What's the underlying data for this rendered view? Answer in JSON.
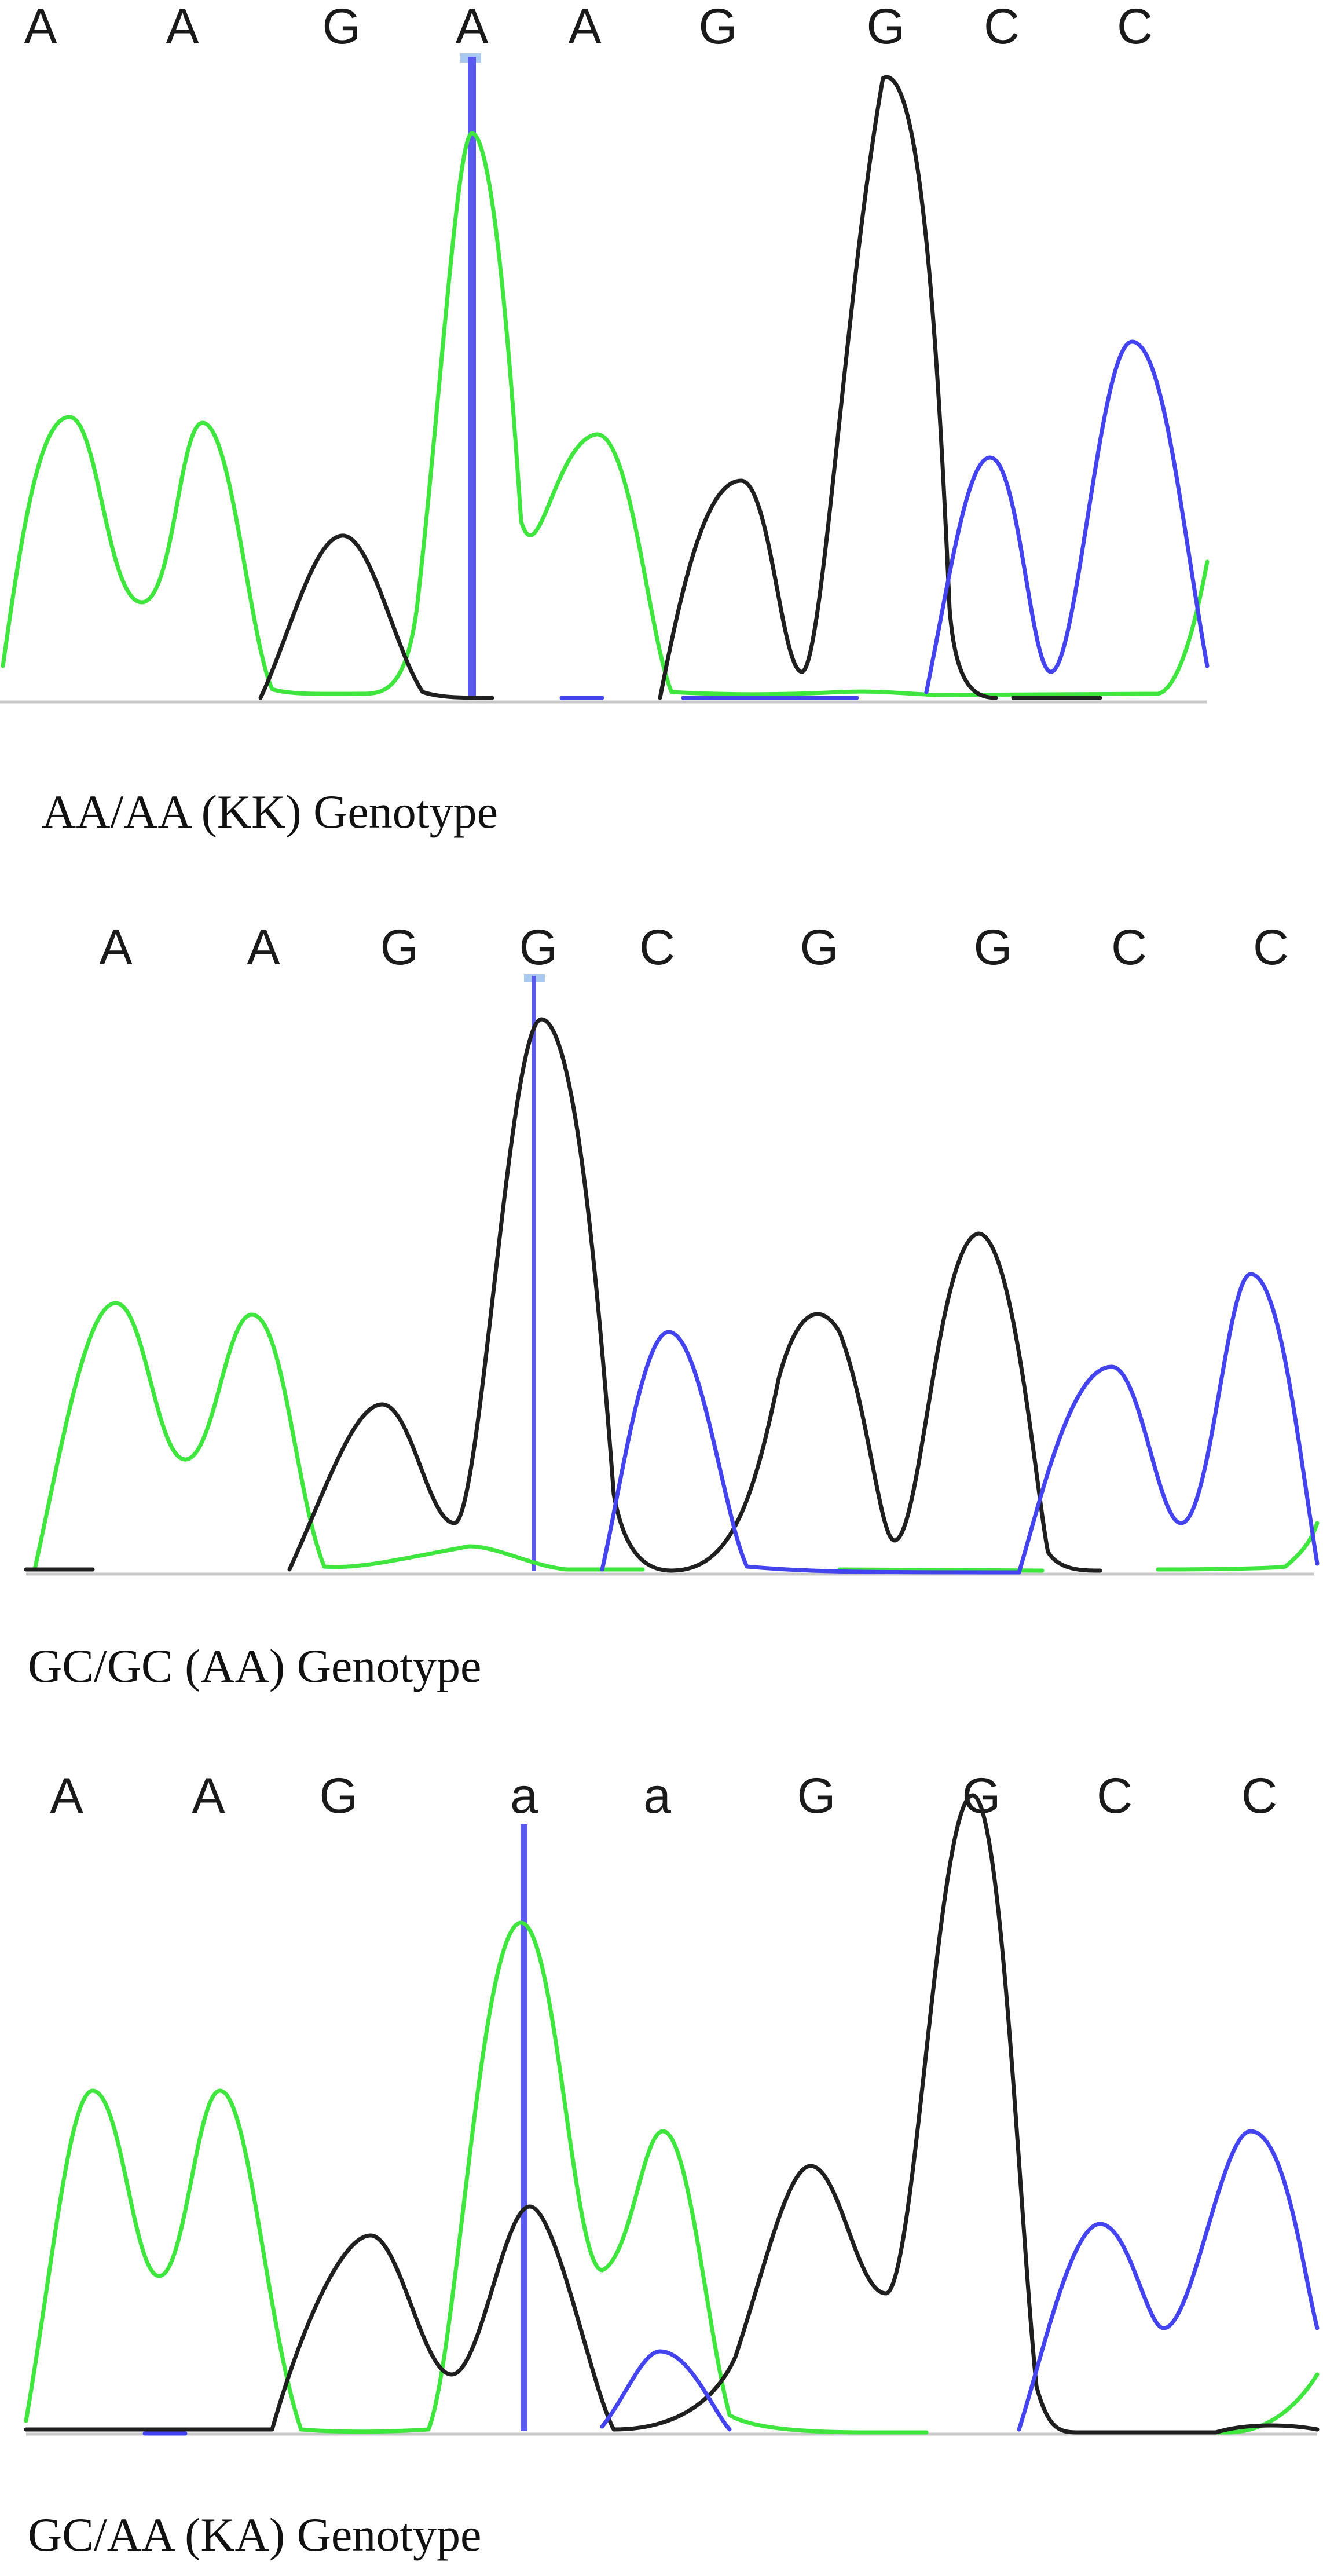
{
  "colors": {
    "A": "#3ee63e",
    "G": "#1f1f1f",
    "C": "#4343f0",
    "cursor": "#5a5aee",
    "baseline": "#bfbfbf"
  },
  "panels": [
    {
      "bases": [
        "A",
        "A",
        "G",
        "A",
        "A",
        "G",
        "G",
        "C",
        "C"
      ],
      "caption": "AA/AA (KK) Genotype"
    },
    {
      "bases": [
        "A",
        "A",
        "G",
        "G",
        "C",
        "G",
        "G",
        "C",
        "C"
      ],
      "caption": "GC/GC (AA) Genotype"
    },
    {
      "bases": [
        "A",
        "A",
        "G",
        "a",
        "a",
        "G",
        "G",
        "C",
        "C"
      ],
      "caption": "GC/AA (KA) Genotype"
    }
  ]
}
